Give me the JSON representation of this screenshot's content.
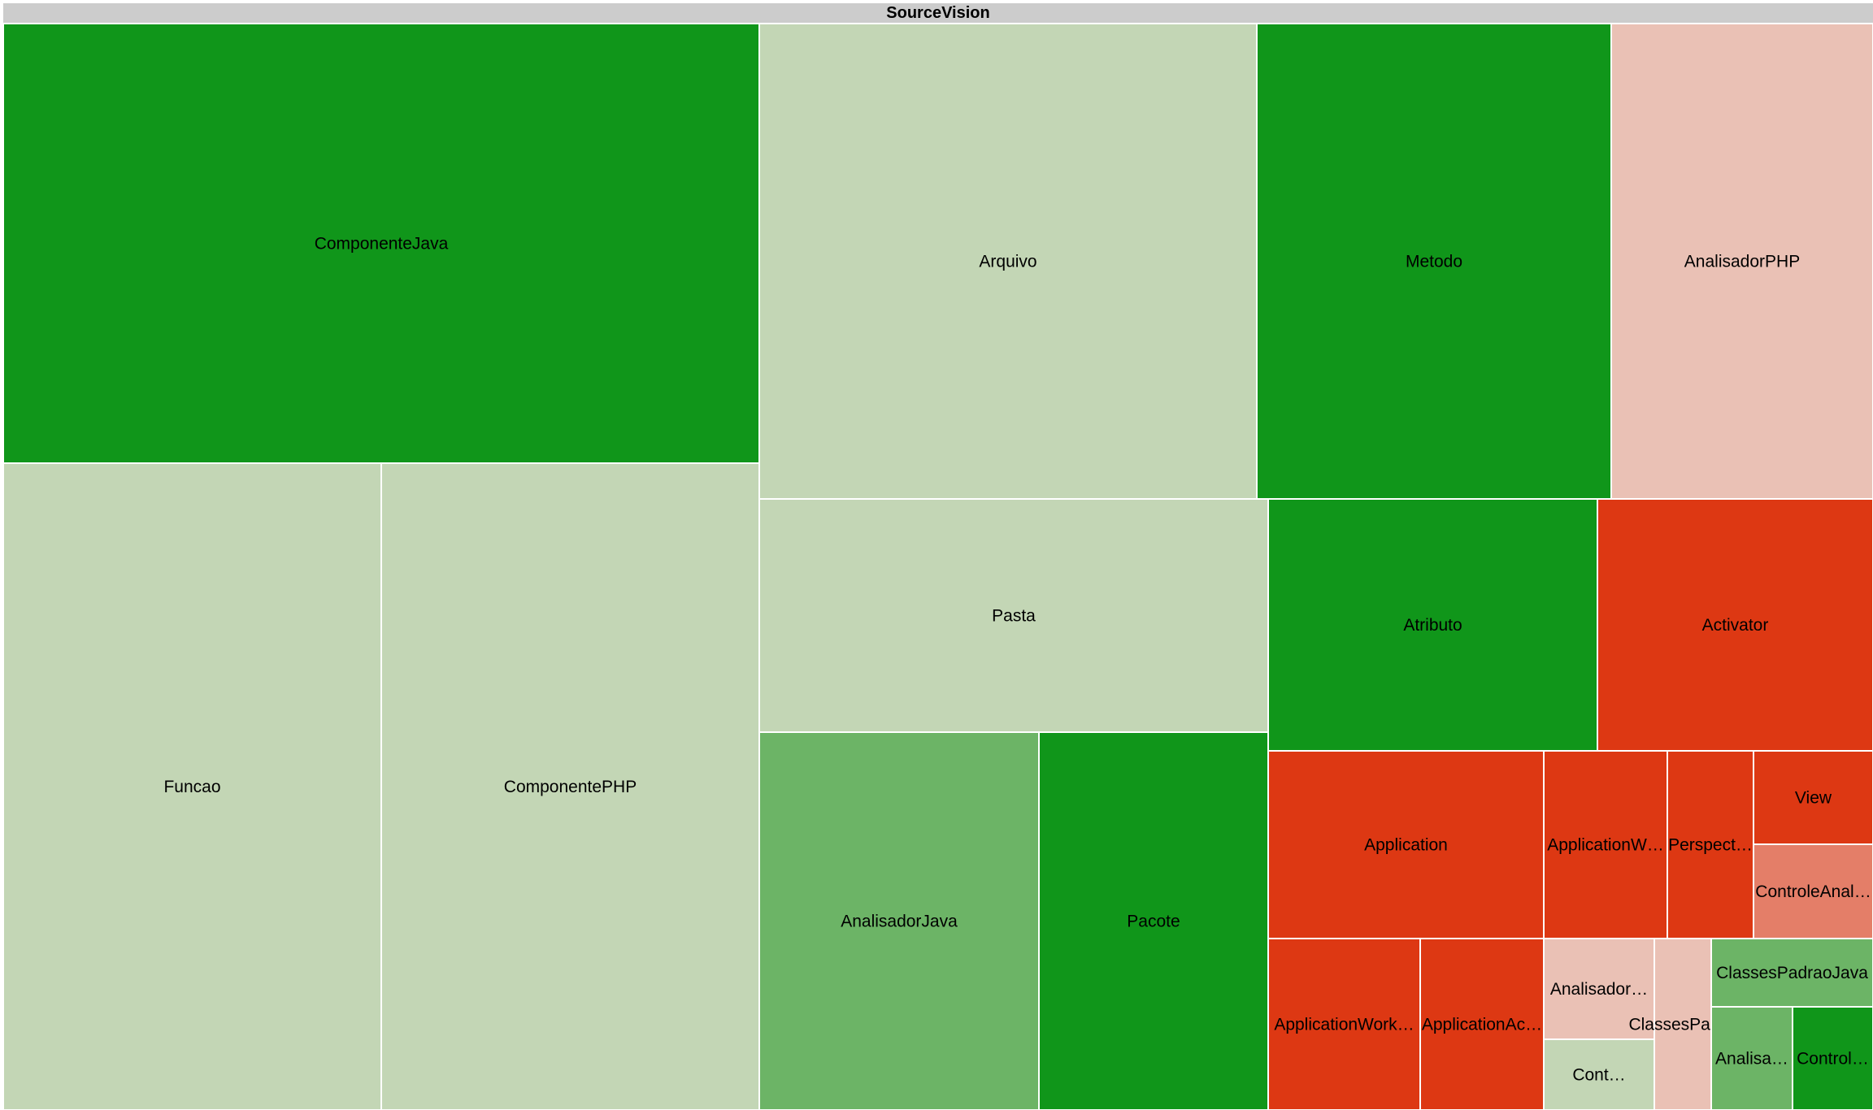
{
  "chart_data": {
    "type": "treemap",
    "title": "SourceVision",
    "color_legend": {
      "red": "#dd3813",
      "light_red": "#e47e68",
      "pale_red": "#eac1b5",
      "neutral": "#c3d6b5",
      "mid_green": "#6cb466",
      "green": "#10961a"
    },
    "nodes": [
      {
        "label": "ComponenteJava",
        "full_name": "ComponenteJava",
        "color": "#10961a"
      },
      {
        "label": "Funcao",
        "full_name": "Funcao",
        "color": "#c3d6b5"
      },
      {
        "label": "ComponentePHP",
        "full_name": "ComponentePHP",
        "color": "#c3d6b5"
      },
      {
        "label": "Arquivo",
        "full_name": "Arquivo",
        "color": "#c3d6b5"
      },
      {
        "label": "Metodo",
        "full_name": "Metodo",
        "color": "#10961a"
      },
      {
        "label": "AnalisadorPHP",
        "full_name": "AnalisadorPHP",
        "color": "#eac1b5"
      },
      {
        "label": "Pasta",
        "full_name": "Pasta",
        "color": "#c3d6b5"
      },
      {
        "label": "AnalisadorJava",
        "full_name": "AnalisadorJava",
        "color": "#6cb466"
      },
      {
        "label": "Pacote",
        "full_name": "Pacote",
        "color": "#10961a"
      },
      {
        "label": "Atributo",
        "full_name": "Atributo",
        "color": "#10961a"
      },
      {
        "label": "Activator",
        "full_name": "Activator",
        "color": "#dd3813"
      },
      {
        "label": "Application",
        "full_name": "Application",
        "color": "#dd3813"
      },
      {
        "label": "ApplicationW…",
        "full_name": "ApplicationW…",
        "color": "#dd3813"
      },
      {
        "label": "Perspect…",
        "full_name": "Perspect…",
        "color": "#dd3813"
      },
      {
        "label": "View",
        "full_name": "View",
        "color": "#dd3813"
      },
      {
        "label": "ControleAnal…",
        "full_name": "ControleAnal…",
        "color": "#e47e68"
      },
      {
        "label": "ApplicationWork…",
        "full_name": "ApplicationWork…",
        "color": "#dd3813"
      },
      {
        "label": "ApplicationAc…",
        "full_name": "ApplicationAc…",
        "color": "#dd3813"
      },
      {
        "label": "Analisador…",
        "full_name": "Analisador…",
        "color": "#eac1b5"
      },
      {
        "label": "ClassesPad…",
        "full_name": "ClassesPad…",
        "color": "#eac1b5"
      },
      {
        "label": "Cont…",
        "full_name": "Cont…",
        "color": "#c3d6b5"
      },
      {
        "label": "ClassesPadraoJava",
        "full_name": "ClassesPadraoJava",
        "color": "#6cb466"
      },
      {
        "label": "Analisa…",
        "full_name": "Analisa…",
        "color": "#6cb466"
      },
      {
        "label": "Control…",
        "full_name": "Control…",
        "color": "#10961a"
      }
    ]
  }
}
